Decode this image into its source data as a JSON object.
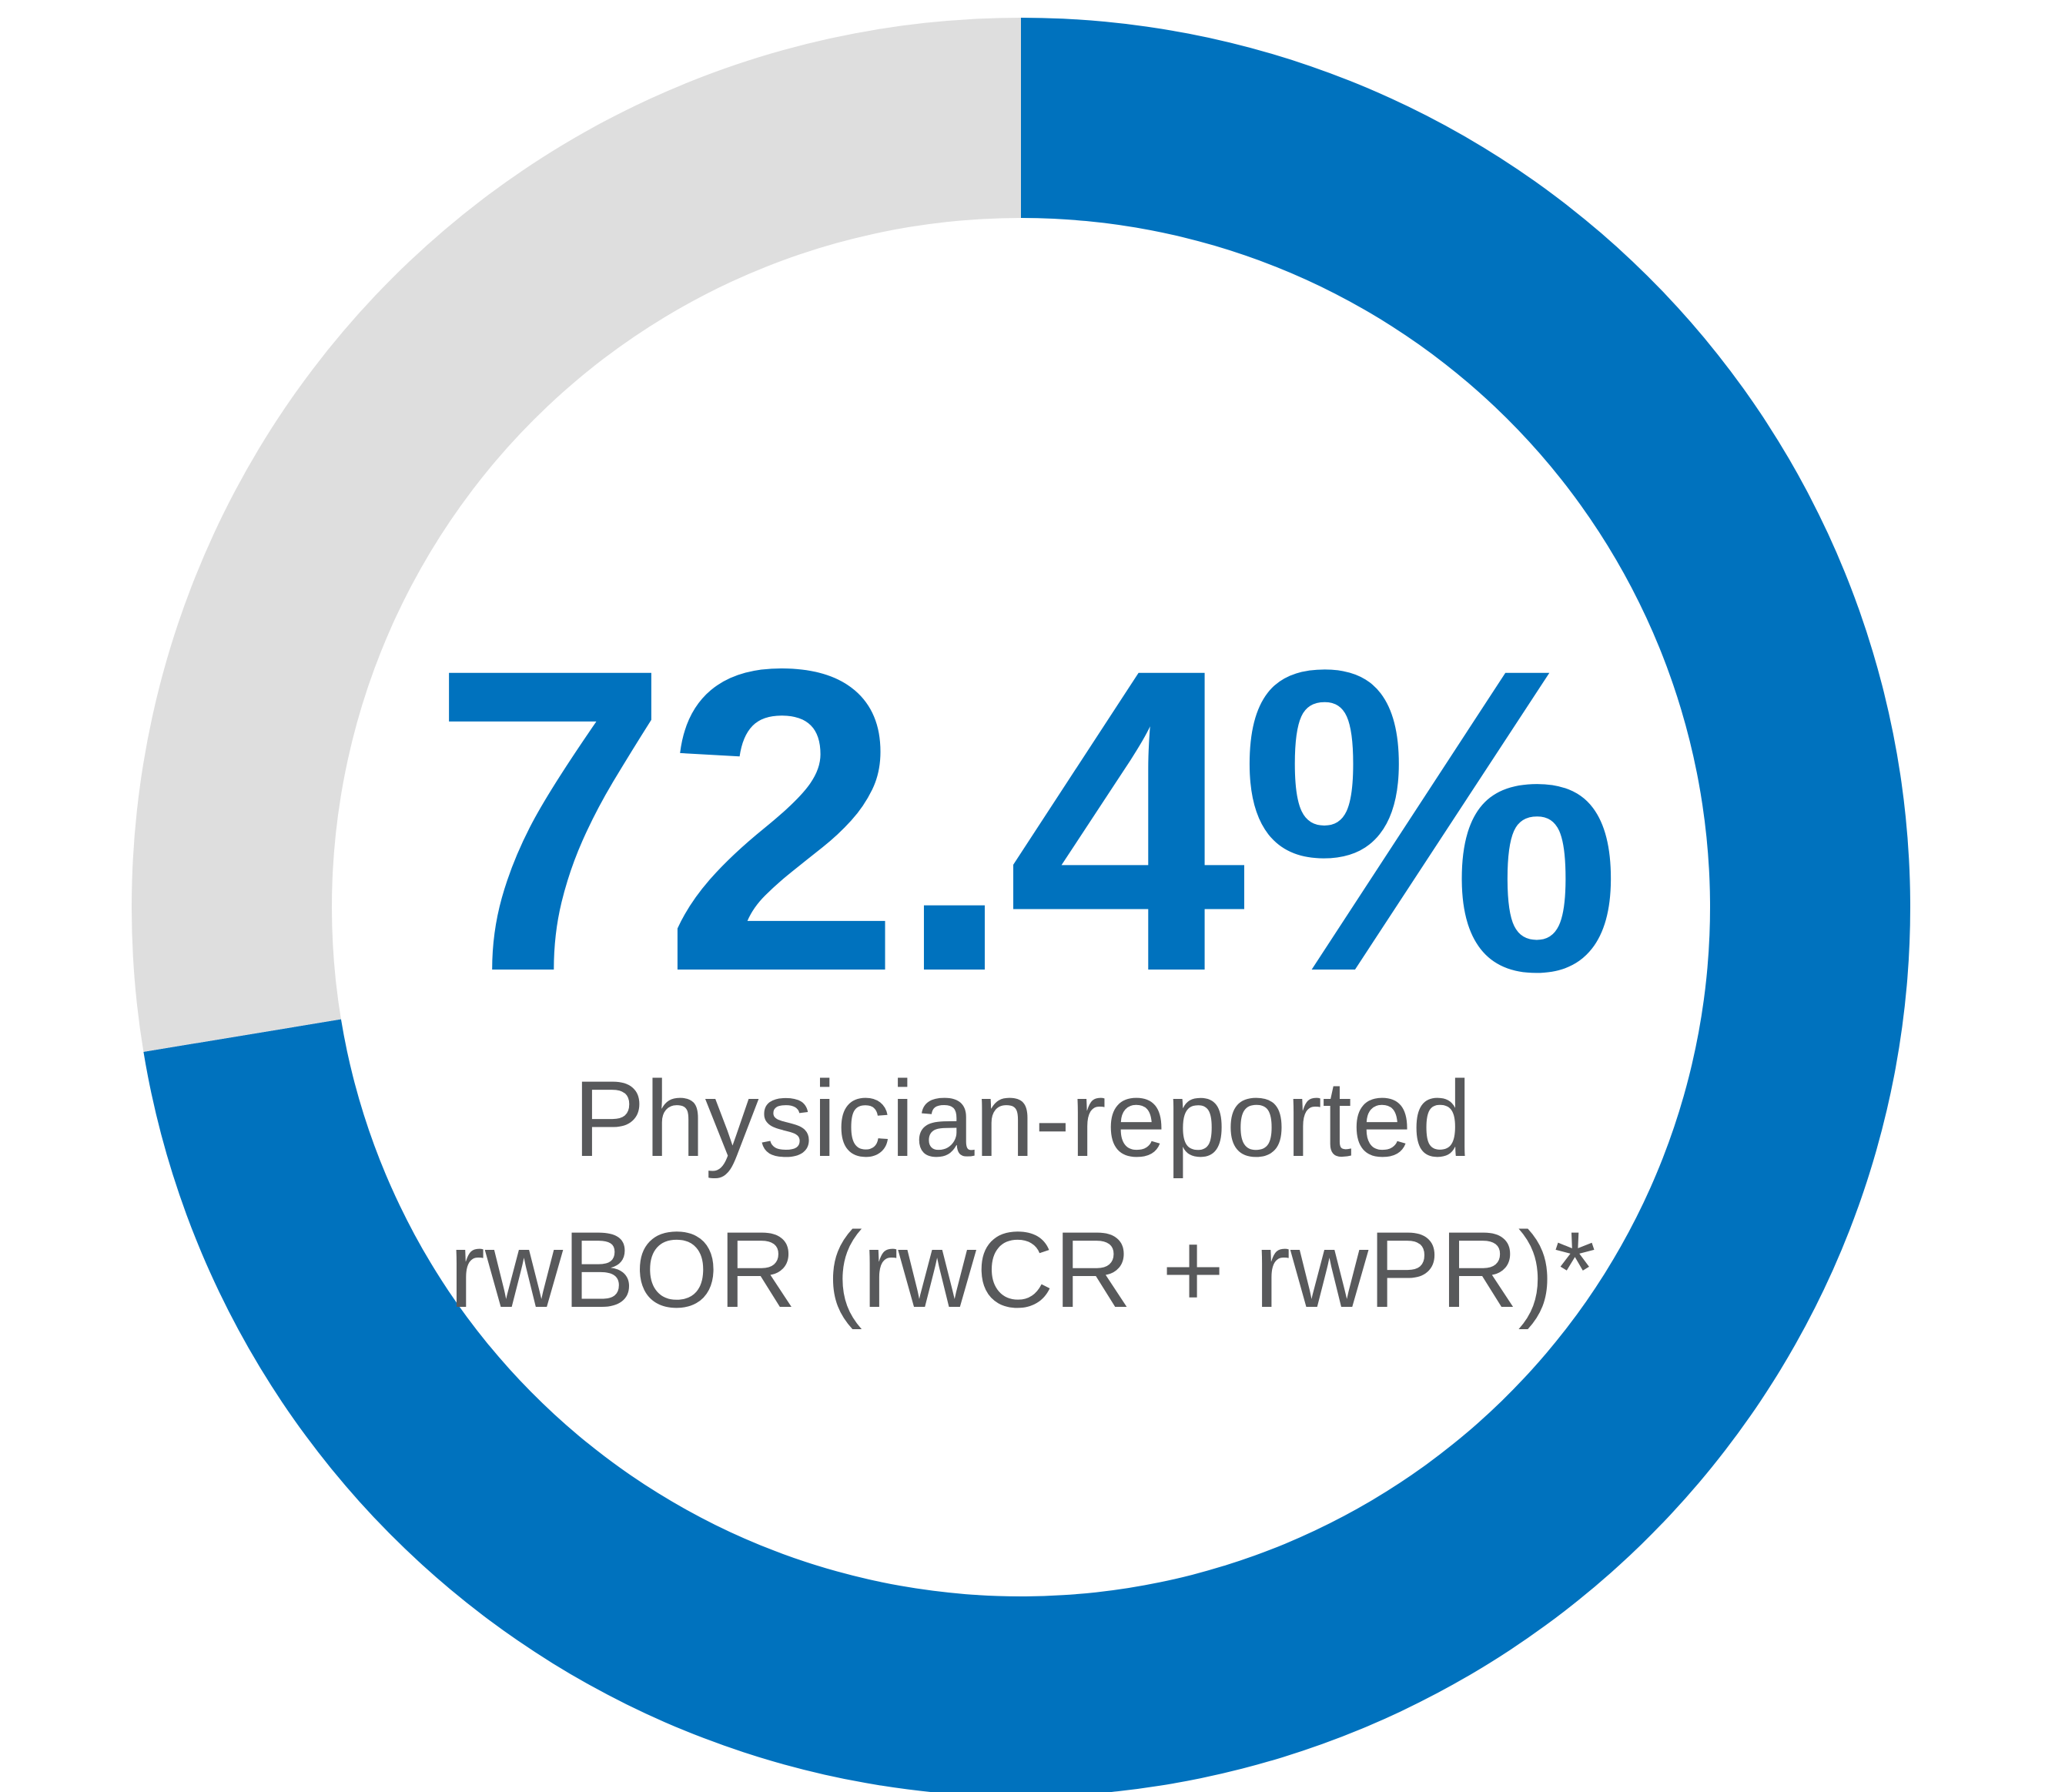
{
  "chart_data": {
    "type": "pie",
    "variant": "donut",
    "slices": [
      {
        "value": 72.4
      },
      {
        "value": 27.6
      }
    ],
    "colors": {
      "highlight": "#0072BE",
      "remainder": "#DEDEDE",
      "center_text": "#58595B"
    },
    "center_value": "72.4%",
    "caption_lines": [
      "Physician-reported",
      "rwBOR (rwCR + rwPR)*"
    ]
  }
}
